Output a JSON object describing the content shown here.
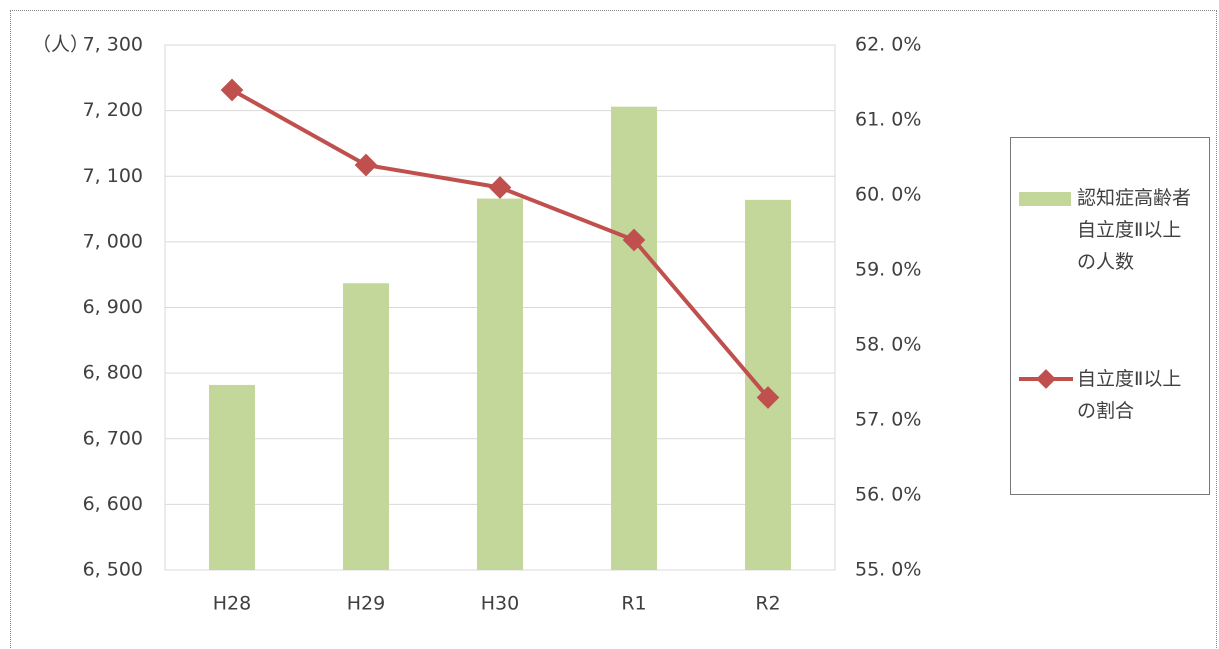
{
  "chart_data": {
    "type": "bar",
    "y_unit_label": "（人）",
    "categories": [
      "H28",
      "H29",
      "H30",
      "R1",
      "R2"
    ],
    "series": [
      {
        "name": "認知症高齢者自立度Ⅱ以上の人数",
        "type": "bar",
        "color": "#c4d79b",
        "values": [
          6782,
          6937,
          7066,
          7206,
          7064
        ]
      },
      {
        "name": "自立度Ⅱ以上の割合",
        "type": "line",
        "axis": "y2",
        "color": "#c0504d",
        "values": [
          61.4,
          60.4,
          60.1,
          59.4,
          57.3
        ]
      }
    ],
    "ylim": [
      6500,
      7300
    ],
    "yticks": [
      {
        "value": 6500,
        "label": "6, 500"
      },
      {
        "value": 6600,
        "label": "6, 600"
      },
      {
        "value": 6700,
        "label": "6, 700"
      },
      {
        "value": 6800,
        "label": "6, 800"
      },
      {
        "value": 6900,
        "label": "6, 900"
      },
      {
        "value": 7000,
        "label": "7, 000"
      },
      {
        "value": 7100,
        "label": "7, 100"
      },
      {
        "value": 7200,
        "label": "7, 200"
      },
      {
        "value": 7300,
        "label": "7, 300"
      }
    ],
    "y2lim": [
      55,
      62
    ],
    "y2ticks": [
      {
        "value": 55,
        "label": "55. 0%"
      },
      {
        "value": 56,
        "label": "56. 0%"
      },
      {
        "value": 57,
        "label": "57. 0%"
      },
      {
        "value": 58,
        "label": "58. 0%"
      },
      {
        "value": 59,
        "label": "59. 0%"
      },
      {
        "value": 60,
        "label": "60. 0%"
      },
      {
        "value": 61,
        "label": "61. 0%"
      },
      {
        "value": 62,
        "label": "62. 0%"
      }
    ],
    "grid": true
  }
}
